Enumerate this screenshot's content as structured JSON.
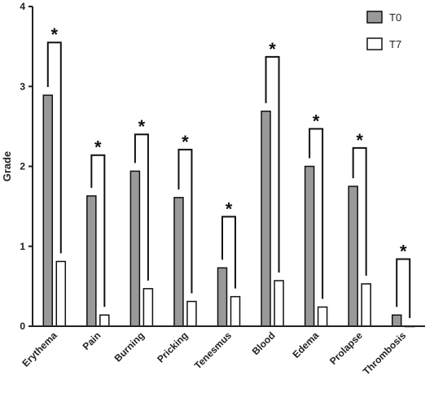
{
  "chart_data": {
    "type": "bar",
    "ylabel": "Grade",
    "ylim": [
      0,
      4
    ],
    "yticks": [
      "0",
      "1",
      "2",
      "3",
      "4"
    ],
    "categories": [
      "Erythema",
      "Pain",
      "Burning",
      "Pricking",
      "Tenesmus",
      "Blood",
      "Edema",
      "Prolapse",
      "Thrombosis"
    ],
    "series": [
      {
        "name": "T0",
        "color": "#999999",
        "values": [
          2.89,
          1.63,
          1.94,
          1.61,
          0.73,
          2.69,
          2.0,
          1.75,
          0.14
        ]
      },
      {
        "name": "T7",
        "color": "#ffffff",
        "values": [
          0.81,
          0.14,
          0.47,
          0.31,
          0.37,
          0.57,
          0.24,
          0.53,
          0.0
        ]
      }
    ],
    "significance": {
      "marker": "*",
      "bracket_tops": [
        3.55,
        2.14,
        2.4,
        2.21,
        1.37,
        3.37,
        2.47,
        2.23,
        0.84
      ]
    },
    "legend_position": "top-right",
    "grid": false
  }
}
